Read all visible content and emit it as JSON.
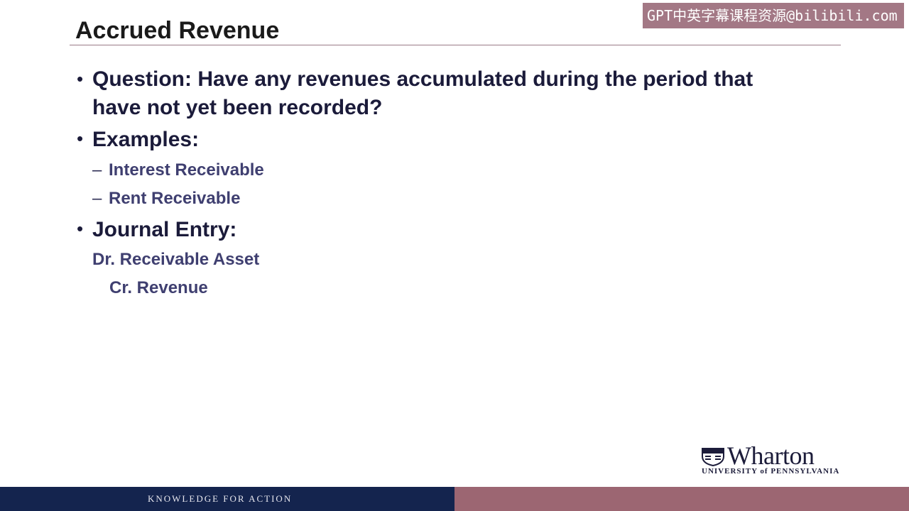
{
  "watermark": "GPT中英字幕课程资源@bilibili.com",
  "slide": {
    "title": "Accrued Revenue",
    "bullets": [
      {
        "text": "Question:  Have any revenues accumulated during the period that"
      },
      {
        "text": "have not yet been recorded?"
      },
      {
        "text": "Examples:"
      },
      {
        "text": "Journal Entry:"
      }
    ],
    "examples": [
      "Interest Receivable",
      "Rent Receivable"
    ],
    "journal": {
      "debit": "Dr. Receivable Asset",
      "credit": "Cr. Revenue"
    }
  },
  "logo": {
    "name": "Wharton",
    "subtitle": "UNIVERSITY of PENNSYLVANIA"
  },
  "footer": {
    "tagline": "KNOWLEDGE FOR ACTION"
  },
  "colors": {
    "footer_left": "#14244e",
    "footer_right": "#9c6672",
    "text": "#1b1b3a"
  }
}
